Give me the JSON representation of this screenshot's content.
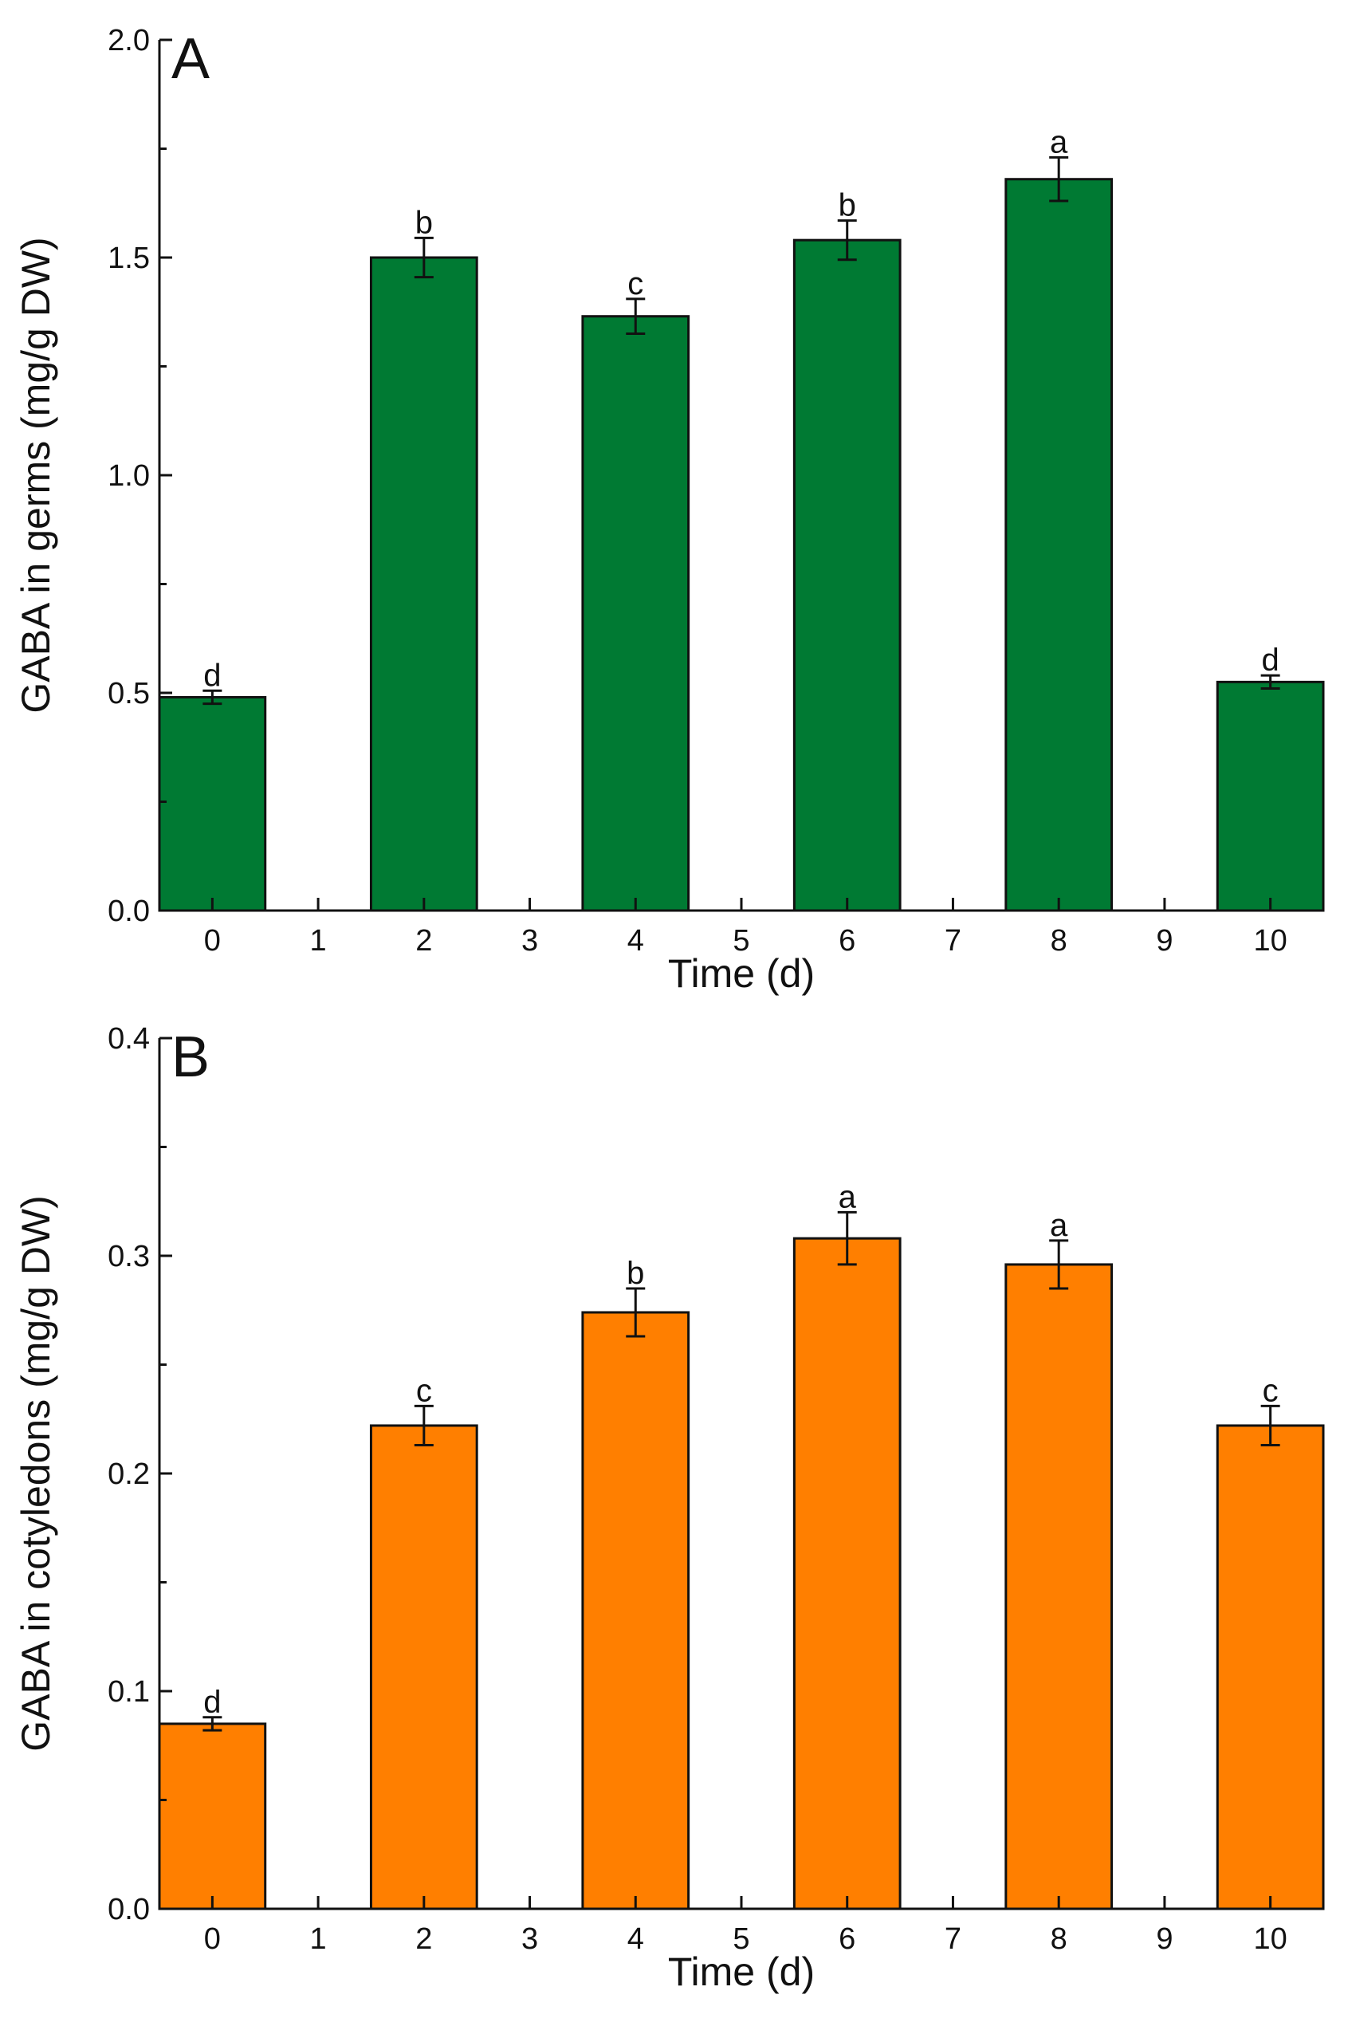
{
  "chart_data": [
    {
      "panel": "A",
      "type": "bar",
      "title": "",
      "xlabel": "Time (d)",
      "ylabel": "GABA in germs (mg/g DW)",
      "x_ticks": [
        "0",
        "1",
        "2",
        "3",
        "4",
        "5",
        "6",
        "7",
        "8",
        "9",
        "10"
      ],
      "y_ticks": [
        "0.0",
        "0.5",
        "1.0",
        "1.5",
        "2.0"
      ],
      "xlim": [
        -0.5,
        10.5
      ],
      "ylim": [
        0,
        2.0
      ],
      "y_minor_step": 0.25,
      "bar_color": "#007a33",
      "bars": [
        {
          "x": 0,
          "value": 0.49,
          "error": 0.015,
          "label": "d"
        },
        {
          "x": 2,
          "value": 1.5,
          "error": 0.045,
          "label": "b"
        },
        {
          "x": 4,
          "value": 1.365,
          "error": 0.04,
          "label": "c"
        },
        {
          "x": 6,
          "value": 1.54,
          "error": 0.045,
          "label": "b"
        },
        {
          "x": 8,
          "value": 1.68,
          "error": 0.05,
          "label": "a"
        },
        {
          "x": 10,
          "value": 0.525,
          "error": 0.015,
          "label": "d"
        }
      ]
    },
    {
      "panel": "B",
      "type": "bar",
      "title": "",
      "xlabel": "Time (d)",
      "ylabel": "GABA in cotyledons (mg/g DW)",
      "x_ticks": [
        "0",
        "1",
        "2",
        "3",
        "4",
        "5",
        "6",
        "7",
        "8",
        "9",
        "10"
      ],
      "y_ticks": [
        "0.0",
        "0.1",
        "0.2",
        "0.3",
        "0.4"
      ],
      "xlim": [
        -0.5,
        10.5
      ],
      "ylim": [
        0,
        0.4
      ],
      "y_minor_step": 0.05,
      "bar_color": "#ff7f00",
      "bars": [
        {
          "x": 0,
          "value": 0.085,
          "error": 0.003,
          "label": "d"
        },
        {
          "x": 2,
          "value": 0.222,
          "error": 0.009,
          "label": "c"
        },
        {
          "x": 4,
          "value": 0.274,
          "error": 0.011,
          "label": "b"
        },
        {
          "x": 6,
          "value": 0.308,
          "error": 0.012,
          "label": "a"
        },
        {
          "x": 8,
          "value": 0.296,
          "error": 0.011,
          "label": "a"
        },
        {
          "x": 10,
          "value": 0.222,
          "error": 0.009,
          "label": "c"
        }
      ]
    }
  ]
}
